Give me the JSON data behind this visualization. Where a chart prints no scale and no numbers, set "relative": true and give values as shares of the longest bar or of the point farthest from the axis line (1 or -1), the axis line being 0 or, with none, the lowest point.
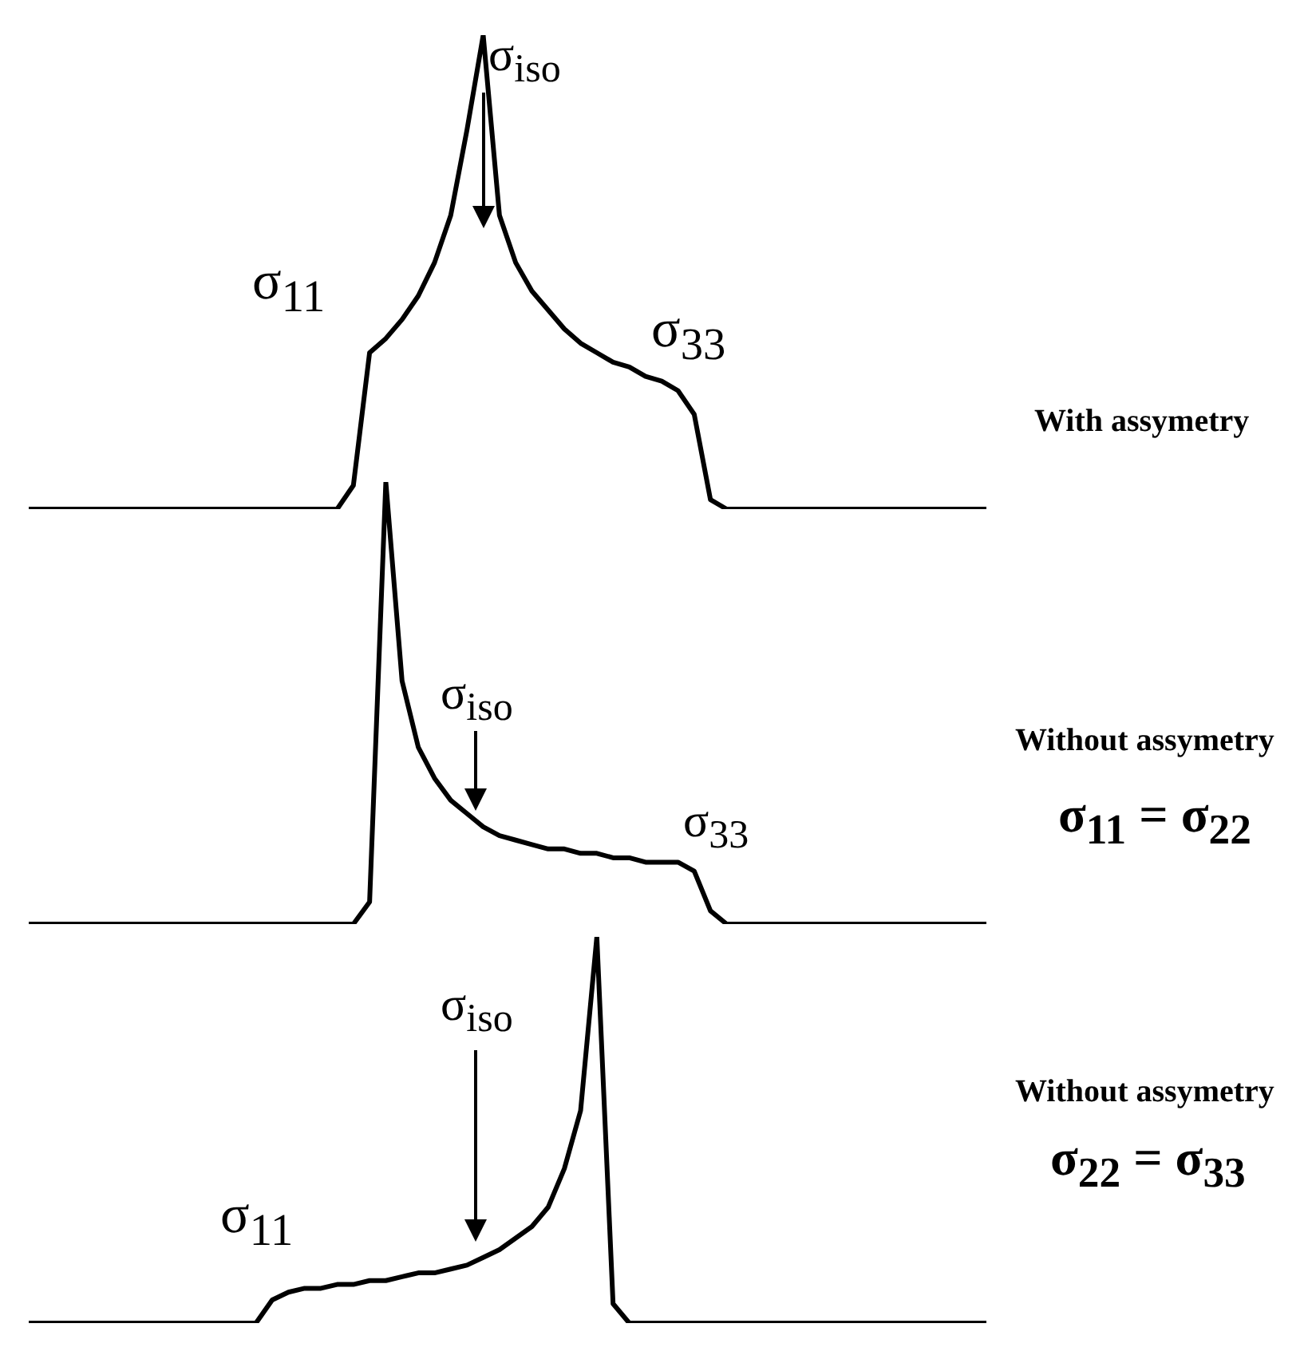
{
  "chart_data": [
    {
      "type": "line",
      "relative": true,
      "color": "#000000",
      "categories": [
        null,
        null,
        null,
        null,
        null,
        null,
        null,
        null,
        null,
        null,
        null,
        null,
        null,
        null,
        null,
        null,
        null,
        null,
        null,
        null,
        null,
        null,
        null,
        null,
        null,
        null,
        null,
        null,
        null,
        null,
        null,
        null,
        null,
        null,
        null,
        null,
        null,
        null,
        null,
        null,
        null,
        null,
        null,
        null,
        null,
        null,
        null,
        null,
        null,
        null,
        null,
        null,
        null,
        null,
        null,
        null,
        null,
        null,
        null,
        null
      ],
      "values": [
        0,
        0,
        0,
        0,
        0,
        0,
        0,
        0,
        0,
        0,
        0,
        0,
        0,
        0,
        0,
        0,
        0,
        0,
        0,
        0,
        0.05,
        0.33,
        0.36,
        0.4,
        0.45,
        0.52,
        0.62,
        0.8,
        1.0,
        0.62,
        0.52,
        0.46,
        0.42,
        0.38,
        0.35,
        0.33,
        0.31,
        0.3,
        0.28,
        0.27,
        0.25,
        0.2,
        0.02,
        0,
        0,
        0,
        0,
        0,
        0,
        0,
        0,
        0,
        0,
        0,
        0,
        0,
        0,
        0,
        0,
        0
      ],
      "annotations": [
        "σ$_{11}$",
        "σ$_{iso}$",
        "σ$_{33}$",
        "With assymetry"
      ]
    },
    {
      "type": "line",
      "relative": true,
      "color": "#000000",
      "categories": [
        null,
        null,
        null,
        null,
        null,
        null,
        null,
        null,
        null,
        null,
        null,
        null,
        null,
        null,
        null,
        null,
        null,
        null,
        null,
        null,
        null,
        null,
        null,
        null,
        null,
        null,
        null,
        null,
        null,
        null,
        null,
        null,
        null,
        null,
        null,
        null,
        null,
        null,
        null,
        null,
        null,
        null,
        null,
        null,
        null,
        null,
        null,
        null,
        null,
        null,
        null,
        null,
        null,
        null,
        null,
        null,
        null,
        null,
        null,
        null
      ],
      "values": [
        0,
        0,
        0,
        0,
        0,
        0,
        0,
        0,
        0,
        0,
        0,
        0,
        0,
        0,
        0,
        0,
        0,
        0,
        0,
        0,
        0,
        0.05,
        1.0,
        0.55,
        0.4,
        0.33,
        0.28,
        0.25,
        0.22,
        0.2,
        0.19,
        0.18,
        0.17,
        0.17,
        0.16,
        0.16,
        0.15,
        0.15,
        0.14,
        0.14,
        0.14,
        0.12,
        0.03,
        0,
        0,
        0,
        0,
        0,
        0,
        0,
        0,
        0,
        0,
        0,
        0,
        0,
        0,
        0,
        0,
        0
      ],
      "annotations": [
        "σ$_{iso}$",
        "σ$_{33}$",
        "Without assymetry",
        "σ$_{11}$ = σ$_{22}$"
      ]
    },
    {
      "type": "line",
      "relative": true,
      "color": "#000000",
      "categories": [
        null,
        null,
        null,
        null,
        null,
        null,
        null,
        null,
        null,
        null,
        null,
        null,
        null,
        null,
        null,
        null,
        null,
        null,
        null,
        null,
        null,
        null,
        null,
        null,
        null,
        null,
        null,
        null,
        null,
        null,
        null,
        null,
        null,
        null,
        null,
        null,
        null,
        null,
        null,
        null,
        null,
        null,
        null,
        null,
        null,
        null,
        null,
        null,
        null,
        null,
        null,
        null,
        null,
        null,
        null,
        null,
        null,
        null,
        null,
        null
      ],
      "values": [
        0,
        0,
        0,
        0,
        0,
        0,
        0,
        0,
        0,
        0,
        0,
        0,
        0,
        0,
        0,
        0.06,
        0.08,
        0.09,
        0.09,
        0.1,
        0.1,
        0.11,
        0.11,
        0.12,
        0.13,
        0.13,
        0.14,
        0.15,
        0.17,
        0.19,
        0.22,
        0.25,
        0.3,
        0.4,
        0.55,
        1.0,
        0.05,
        0,
        0,
        0,
        0,
        0,
        0,
        0,
        0,
        0,
        0,
        0,
        0,
        0,
        0,
        0,
        0,
        0,
        0,
        0,
        0,
        0,
        0,
        0
      ],
      "annotations": [
        "σ$_{11}$",
        "σ$_{iso}$",
        "Without assymetry",
        "σ$_{22}$ = σ$_{33}$"
      ]
    }
  ]
}
